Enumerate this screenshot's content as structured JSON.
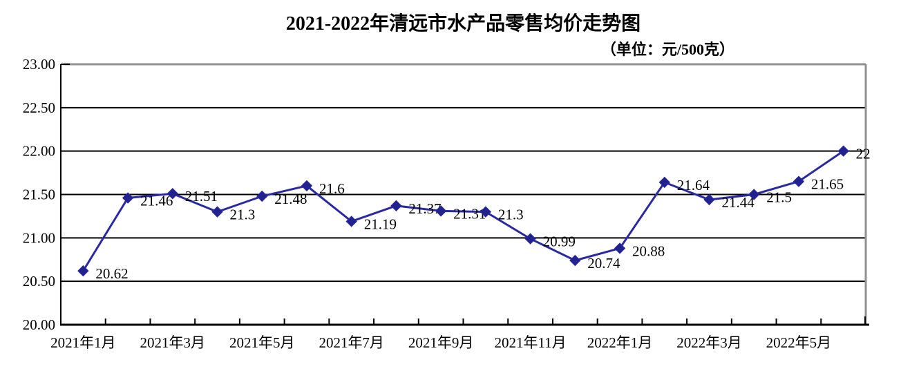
{
  "chart_data": {
    "type": "line",
    "title": "2021-2022年清远市水产品零售均价走势图",
    "unit_label": "（单位：元/500克）",
    "n_points": 18,
    "values": [
      20.62,
      21.46,
      21.51,
      21.3,
      21.48,
      21.6,
      21.19,
      21.37,
      21.31,
      21.3,
      20.99,
      20.74,
      20.88,
      21.64,
      21.44,
      21.5,
      21.65,
      22
    ],
    "point_labels": [
      "20.62",
      "21.46",
      "21.51",
      "21.3",
      "21.48",
      "21.6",
      "21.19",
      "21.37",
      "21.31",
      "21.3",
      "20.99",
      "20.74",
      "20.88",
      "21.64",
      "21.44",
      "21.5",
      "21.65",
      "22"
    ],
    "x_tick_labels": [
      "2021年1月",
      "2021年3月",
      "2021年5月",
      "2021年7月",
      "2021年9月",
      "2021年11月",
      "2022年1月",
      "2022年3月",
      "2022年5月"
    ],
    "x_tick_point_indices": [
      0,
      2,
      4,
      6,
      8,
      10,
      12,
      14,
      16
    ],
    "y_tick_labels": [
      "23.00",
      "22.50",
      "22.00",
      "21.50",
      "21.00",
      "20.50",
      "20.00"
    ],
    "y_tick_values": [
      23,
      22.5,
      22,
      21.5,
      21,
      20.5,
      20
    ],
    "ylim": [
      20,
      23
    ],
    "grid": true,
    "legend": "none",
    "colors": {
      "line": "#2929A5",
      "marker": "#22228F",
      "gridline": "#000000",
      "frame": "#909090",
      "text": "#000000",
      "background": "#FFFFFF"
    }
  }
}
